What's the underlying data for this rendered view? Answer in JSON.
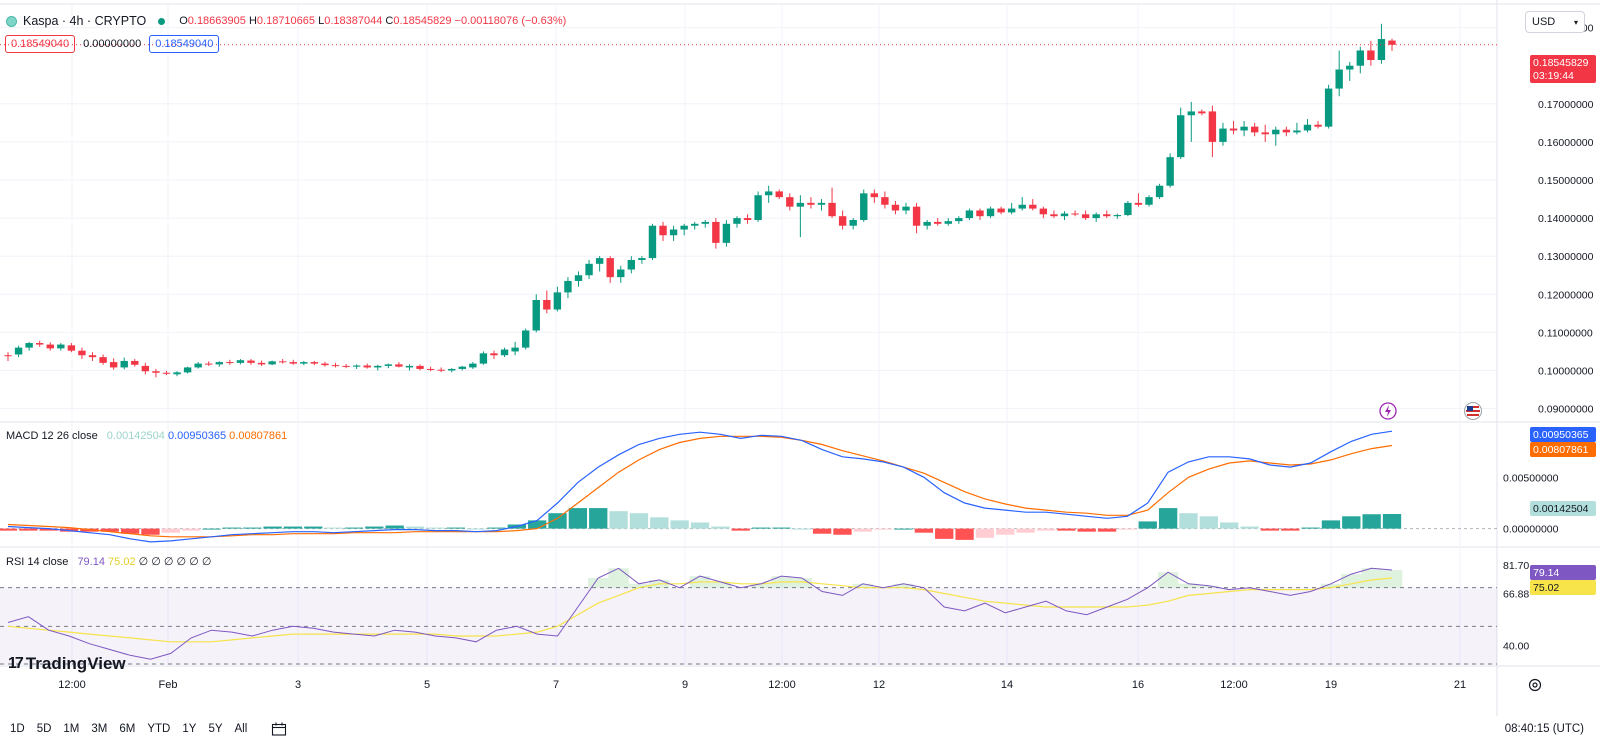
{
  "header": {
    "symbol": "Kaspa · 4h · CRYPTO",
    "open_label": "O",
    "open": "0.18663905",
    "high_label": "H",
    "high": "0.18710665",
    "low_label": "L",
    "low": "0.18387044",
    "close_label": "C",
    "close": "0.18545829",
    "change": "−0.00118076 (−0.63%)"
  },
  "price_boxes": {
    "bid": "0.18549040",
    "spread": "0.00000000",
    "ask": "0.18549040"
  },
  "currency": {
    "label": "USD"
  },
  "price_axis": {
    "ticks": [
      "0.19000000",
      "0.17000000",
      "0.16000000",
      "0.15000000",
      "0.14000000",
      "0.13000000",
      "0.12000000",
      "0.11000000",
      "0.10000000",
      "0.09000000"
    ],
    "current_price": "0.18545829",
    "countdown": "03:19:44"
  },
  "macd": {
    "label": "MACD 12 26 close",
    "histogram_value": "0.00142504",
    "macd_value": "0.00950365",
    "signal_value": "0.00807861",
    "axis_ticks": [
      "0.00500000",
      "0.00000000"
    ]
  },
  "rsi": {
    "label": "RSI 14 close",
    "value": "79.14",
    "ma_value": "75.02",
    "extra": "∅ ∅ ∅ ∅ ∅ ∅",
    "axis_ticks": [
      "81.70",
      "66.88",
      "40.00"
    ]
  },
  "time_axis": [
    "12:00",
    "Feb",
    "3",
    "5",
    "7",
    "9",
    "12:00",
    "12",
    "14",
    "16",
    "12:00",
    "19",
    "21"
  ],
  "timeframes": [
    "1D",
    "5D",
    "1M",
    "3M",
    "6M",
    "YTD",
    "1Y",
    "5Y",
    "All"
  ],
  "clock": "08:40:15 (UTC)",
  "branding": "TradingView",
  "colors": {
    "up": "#089981",
    "down": "#f23645",
    "macd": "#2962ff",
    "signal": "#ff6d00",
    "rsi": "#7e57c2",
    "rsi_ma": "#f7e34a"
  },
  "chart_data": {
    "type": "candlestick",
    "interval": "4h",
    "y_range": [
      0.087,
      0.192
    ],
    "candles": [
      {
        "o": 0.104,
        "h": 0.1048,
        "l": 0.1025,
        "c": 0.1038
      },
      {
        "o": 0.1042,
        "h": 0.1065,
        "l": 0.1035,
        "c": 0.106
      },
      {
        "o": 0.106,
        "h": 0.1075,
        "l": 0.1052,
        "c": 0.1072
      },
      {
        "o": 0.1072,
        "h": 0.1078,
        "l": 0.1062,
        "c": 0.1068
      },
      {
        "o": 0.1068,
        "h": 0.1074,
        "l": 0.1052,
        "c": 0.1058
      },
      {
        "o": 0.1058,
        "h": 0.1072,
        "l": 0.1052,
        "c": 0.1068
      },
      {
        "o": 0.1066,
        "h": 0.1072,
        "l": 0.1048,
        "c": 0.1052
      },
      {
        "o": 0.1052,
        "h": 0.106,
        "l": 0.103,
        "c": 0.104
      },
      {
        "o": 0.104,
        "h": 0.1048,
        "l": 0.1025,
        "c": 0.1035
      },
      {
        "o": 0.1035,
        "h": 0.1042,
        "l": 0.1015,
        "c": 0.102
      },
      {
        "o": 0.1022,
        "h": 0.1032,
        "l": 0.1002,
        "c": 0.1008
      },
      {
        "o": 0.1008,
        "h": 0.1034,
        "l": 0.1003,
        "c": 0.1025
      },
      {
        "o": 0.1025,
        "h": 0.103,
        "l": 0.101,
        "c": 0.1015
      },
      {
        "o": 0.1012,
        "h": 0.102,
        "l": 0.099,
        "c": 0.0998
      },
      {
        "o": 0.0998,
        "h": 0.1004,
        "l": 0.0982,
        "c": 0.0994
      },
      {
        "o": 0.0994,
        "h": 0.0999,
        "l": 0.0988,
        "c": 0.0992
      },
      {
        "o": 0.099,
        "h": 0.0998,
        "l": 0.0985,
        "c": 0.0995
      },
      {
        "o": 0.0995,
        "h": 0.101,
        "l": 0.0992,
        "c": 0.1008
      },
      {
        "o": 0.1008,
        "h": 0.1022,
        "l": 0.1005,
        "c": 0.1018
      },
      {
        "o": 0.1018,
        "h": 0.1024,
        "l": 0.1012,
        "c": 0.1016
      },
      {
        "o": 0.1016,
        "h": 0.1024,
        "l": 0.101,
        "c": 0.1022
      },
      {
        "o": 0.1022,
        "h": 0.1028,
        "l": 0.1015,
        "c": 0.102
      },
      {
        "o": 0.102,
        "h": 0.103,
        "l": 0.1016,
        "c": 0.1027
      },
      {
        "o": 0.1026,
        "h": 0.103,
        "l": 0.1015,
        "c": 0.102
      },
      {
        "o": 0.102,
        "h": 0.1026,
        "l": 0.1012,
        "c": 0.1016
      },
      {
        "o": 0.1016,
        "h": 0.1026,
        "l": 0.1014,
        "c": 0.1024
      },
      {
        "o": 0.1024,
        "h": 0.103,
        "l": 0.1018,
        "c": 0.1022
      },
      {
        "o": 0.1022,
        "h": 0.1028,
        "l": 0.1015,
        "c": 0.1018
      },
      {
        "o": 0.1018,
        "h": 0.1025,
        "l": 0.1014,
        "c": 0.1022
      },
      {
        "o": 0.1022,
        "h": 0.1025,
        "l": 0.1014,
        "c": 0.1018
      },
      {
        "o": 0.1018,
        "h": 0.1023,
        "l": 0.101,
        "c": 0.1014
      },
      {
        "o": 0.1014,
        "h": 0.102,
        "l": 0.1008,
        "c": 0.1012
      },
      {
        "o": 0.1012,
        "h": 0.1017,
        "l": 0.1006,
        "c": 0.101
      },
      {
        "o": 0.101,
        "h": 0.1016,
        "l": 0.1004,
        "c": 0.1013
      },
      {
        "o": 0.1013,
        "h": 0.1018,
        "l": 0.1005,
        "c": 0.1008
      },
      {
        "o": 0.1008,
        "h": 0.1015,
        "l": 0.1,
        "c": 0.1012
      },
      {
        "o": 0.1012,
        "h": 0.1018,
        "l": 0.1006,
        "c": 0.1016
      },
      {
        "o": 0.1016,
        "h": 0.1022,
        "l": 0.1008,
        "c": 0.101
      },
      {
        "o": 0.1008,
        "h": 0.1016,
        "l": 0.1,
        "c": 0.1012
      },
      {
        "o": 0.1012,
        "h": 0.1016,
        "l": 0.1,
        "c": 0.1004
      },
      {
        "o": 0.1004,
        "h": 0.101,
        "l": 0.0998,
        "c": 0.1002
      },
      {
        "o": 0.1002,
        "h": 0.1008,
        "l": 0.0996,
        "c": 0.1
      },
      {
        "o": 0.1,
        "h": 0.1006,
        "l": 0.0995,
        "c": 0.1004
      },
      {
        "o": 0.1004,
        "h": 0.1012,
        "l": 0.1,
        "c": 0.101
      },
      {
        "o": 0.1008,
        "h": 0.1022,
        "l": 0.1004,
        "c": 0.1018
      },
      {
        "o": 0.1018,
        "h": 0.105,
        "l": 0.1015,
        "c": 0.1045
      },
      {
        "o": 0.1045,
        "h": 0.1052,
        "l": 0.103,
        "c": 0.104
      },
      {
        "o": 0.104,
        "h": 0.106,
        "l": 0.1035,
        "c": 0.1055
      },
      {
        "o": 0.105,
        "h": 0.1075,
        "l": 0.104,
        "c": 0.106
      },
      {
        "o": 0.106,
        "h": 0.111,
        "l": 0.1055,
        "c": 0.1105
      },
      {
        "o": 0.1105,
        "h": 0.12,
        "l": 0.11,
        "c": 0.1185
      },
      {
        "o": 0.1185,
        "h": 0.121,
        "l": 0.115,
        "c": 0.116
      },
      {
        "o": 0.116,
        "h": 0.122,
        "l": 0.1155,
        "c": 0.1205
      },
      {
        "o": 0.1205,
        "h": 0.1245,
        "l": 0.119,
        "c": 0.1235
      },
      {
        "o": 0.1235,
        "h": 0.126,
        "l": 0.122,
        "c": 0.125
      },
      {
        "o": 0.125,
        "h": 0.129,
        "l": 0.124,
        "c": 0.128
      },
      {
        "o": 0.128,
        "h": 0.13,
        "l": 0.126,
        "c": 0.1295
      },
      {
        "o": 0.1295,
        "h": 0.13,
        "l": 0.123,
        "c": 0.1245
      },
      {
        "o": 0.1245,
        "h": 0.1275,
        "l": 0.123,
        "c": 0.1265
      },
      {
        "o": 0.1265,
        "h": 0.13,
        "l": 0.1255,
        "c": 0.129
      },
      {
        "o": 0.129,
        "h": 0.13,
        "l": 0.128,
        "c": 0.1295
      },
      {
        "o": 0.1295,
        "h": 0.1385,
        "l": 0.129,
        "c": 0.138
      },
      {
        "o": 0.138,
        "h": 0.139,
        "l": 0.134,
        "c": 0.1355
      },
      {
        "o": 0.1355,
        "h": 0.138,
        "l": 0.134,
        "c": 0.137
      },
      {
        "o": 0.137,
        "h": 0.1385,
        "l": 0.1355,
        "c": 0.138
      },
      {
        "o": 0.138,
        "h": 0.139,
        "l": 0.137,
        "c": 0.1385
      },
      {
        "o": 0.1385,
        "h": 0.1395,
        "l": 0.1375,
        "c": 0.139
      },
      {
        "o": 0.139,
        "h": 0.14,
        "l": 0.132,
        "c": 0.1335
      },
      {
        "o": 0.1335,
        "h": 0.1395,
        "l": 0.1325,
        "c": 0.1385
      },
      {
        "o": 0.1385,
        "h": 0.1405,
        "l": 0.1375,
        "c": 0.14
      },
      {
        "o": 0.14,
        "h": 0.141,
        "l": 0.1385,
        "c": 0.1395
      },
      {
        "o": 0.1395,
        "h": 0.147,
        "l": 0.139,
        "c": 0.146
      },
      {
        "o": 0.146,
        "h": 0.1485,
        "l": 0.144,
        "c": 0.147
      },
      {
        "o": 0.147,
        "h": 0.1475,
        "l": 0.145,
        "c": 0.1455
      },
      {
        "o": 0.1455,
        "h": 0.1465,
        "l": 0.142,
        "c": 0.143
      },
      {
        "o": 0.143,
        "h": 0.146,
        "l": 0.135,
        "c": 0.144
      },
      {
        "o": 0.144,
        "h": 0.1455,
        "l": 0.1425,
        "c": 0.1435
      },
      {
        "o": 0.1435,
        "h": 0.145,
        "l": 0.142,
        "c": 0.144
      },
      {
        "o": 0.144,
        "h": 0.148,
        "l": 0.14,
        "c": 0.1405
      },
      {
        "o": 0.1405,
        "h": 0.142,
        "l": 0.137,
        "c": 0.138
      },
      {
        "o": 0.138,
        "h": 0.14,
        "l": 0.137,
        "c": 0.1395
      },
      {
        "o": 0.1395,
        "h": 0.1475,
        "l": 0.139,
        "c": 0.1465
      },
      {
        "o": 0.1465,
        "h": 0.1475,
        "l": 0.144,
        "c": 0.1455
      },
      {
        "o": 0.1455,
        "h": 0.147,
        "l": 0.1425,
        "c": 0.1435
      },
      {
        "o": 0.1435,
        "h": 0.1445,
        "l": 0.141,
        "c": 0.142
      },
      {
        "o": 0.142,
        "h": 0.144,
        "l": 0.141,
        "c": 0.143
      },
      {
        "o": 0.143,
        "h": 0.144,
        "l": 0.136,
        "c": 0.138
      },
      {
        "o": 0.138,
        "h": 0.1395,
        "l": 0.137,
        "c": 0.139
      },
      {
        "o": 0.139,
        "h": 0.14,
        "l": 0.138,
        "c": 0.1385
      },
      {
        "o": 0.1385,
        "h": 0.14,
        "l": 0.138,
        "c": 0.1392
      },
      {
        "o": 0.1392,
        "h": 0.1405,
        "l": 0.1385,
        "c": 0.14
      },
      {
        "o": 0.14,
        "h": 0.1425,
        "l": 0.1395,
        "c": 0.142
      },
      {
        "o": 0.142,
        "h": 0.1425,
        "l": 0.1395,
        "c": 0.1405
      },
      {
        "o": 0.1405,
        "h": 0.143,
        "l": 0.14,
        "c": 0.1425
      },
      {
        "o": 0.1425,
        "h": 0.143,
        "l": 0.141,
        "c": 0.1415
      },
      {
        "o": 0.1415,
        "h": 0.144,
        "l": 0.141,
        "c": 0.1425
      },
      {
        "o": 0.1425,
        "h": 0.1455,
        "l": 0.142,
        "c": 0.1435
      },
      {
        "o": 0.1435,
        "h": 0.145,
        "l": 0.142,
        "c": 0.1425
      },
      {
        "o": 0.1425,
        "h": 0.143,
        "l": 0.14,
        "c": 0.141
      },
      {
        "o": 0.141,
        "h": 0.142,
        "l": 0.14,
        "c": 0.1405
      },
      {
        "o": 0.1405,
        "h": 0.1418,
        "l": 0.1395,
        "c": 0.1412
      },
      {
        "o": 0.1412,
        "h": 0.142,
        "l": 0.1405,
        "c": 0.141
      },
      {
        "o": 0.141,
        "h": 0.142,
        "l": 0.1395,
        "c": 0.14
      },
      {
        "o": 0.14,
        "h": 0.1415,
        "l": 0.139,
        "c": 0.141
      },
      {
        "o": 0.141,
        "h": 0.142,
        "l": 0.14,
        "c": 0.1405
      },
      {
        "o": 0.1405,
        "h": 0.1412,
        "l": 0.1398,
        "c": 0.1408
      },
      {
        "o": 0.1408,
        "h": 0.1445,
        "l": 0.1405,
        "c": 0.144
      },
      {
        "o": 0.144,
        "h": 0.1465,
        "l": 0.143,
        "c": 0.1435
      },
      {
        "o": 0.1435,
        "h": 0.146,
        "l": 0.143,
        "c": 0.1455
      },
      {
        "o": 0.1455,
        "h": 0.149,
        "l": 0.145,
        "c": 0.1485
      },
      {
        "o": 0.1485,
        "h": 0.157,
        "l": 0.148,
        "c": 0.156
      },
      {
        "o": 0.156,
        "h": 0.169,
        "l": 0.1555,
        "c": 0.167
      },
      {
        "o": 0.167,
        "h": 0.1705,
        "l": 0.16,
        "c": 0.168
      },
      {
        "o": 0.168,
        "h": 0.1685,
        "l": 0.167,
        "c": 0.1675
      },
      {
        "o": 0.168,
        "h": 0.1695,
        "l": 0.156,
        "c": 0.16
      },
      {
        "o": 0.16,
        "h": 0.165,
        "l": 0.159,
        "c": 0.1635
      },
      {
        "o": 0.1635,
        "h": 0.1655,
        "l": 0.162,
        "c": 0.163
      },
      {
        "o": 0.163,
        "h": 0.1655,
        "l": 0.1615,
        "c": 0.164
      },
      {
        "o": 0.164,
        "h": 0.165,
        "l": 0.1615,
        "c": 0.1625
      },
      {
        "o": 0.1625,
        "h": 0.1645,
        "l": 0.16,
        "c": 0.162
      },
      {
        "o": 0.162,
        "h": 0.164,
        "l": 0.159,
        "c": 0.1632
      },
      {
        "o": 0.1632,
        "h": 0.164,
        "l": 0.1615,
        "c": 0.1625
      },
      {
        "o": 0.1625,
        "h": 0.165,
        "l": 0.162,
        "c": 0.163
      },
      {
        "o": 0.163,
        "h": 0.166,
        "l": 0.1625,
        "c": 0.1645
      },
      {
        "o": 0.1645,
        "h": 0.1655,
        "l": 0.1635,
        "c": 0.164
      },
      {
        "o": 0.164,
        "h": 0.175,
        "l": 0.1635,
        "c": 0.174
      },
      {
        "o": 0.174,
        "h": 0.184,
        "l": 0.172,
        "c": 0.179
      },
      {
        "o": 0.179,
        "h": 0.181,
        "l": 0.176,
        "c": 0.18
      },
      {
        "o": 0.18,
        "h": 0.185,
        "l": 0.178,
        "c": 0.184
      },
      {
        "o": 0.184,
        "h": 0.1865,
        "l": 0.18,
        "c": 0.1815
      },
      {
        "o": 0.1815,
        "h": 0.191,
        "l": 0.1805,
        "c": 0.187
      },
      {
        "o": 0.1866,
        "h": 0.1871,
        "l": 0.1839,
        "c": 0.1855
      }
    ],
    "macd_line": [
      0.0002,
      0.0001,
      0.0,
      -0.0002,
      -0.0004,
      -0.0006,
      -0.001,
      -0.0013,
      -0.0012,
      -0.001,
      -0.0008,
      -0.0006,
      -0.0005,
      -0.0004,
      -0.0003,
      -0.0003,
      -0.0004,
      -0.0003,
      -0.0002,
      -0.0001,
      -0.0001,
      -0.0002,
      -0.0002,
      -0.0003,
      -0.0002,
      0.0002,
      0.0008,
      0.0025,
      0.0045,
      0.006,
      0.0072,
      0.0082,
      0.0088,
      0.0092,
      0.0094,
      0.0092,
      0.0088,
      0.0091,
      0.009,
      0.0086,
      0.0077,
      0.007,
      0.0068,
      0.0065,
      0.006,
      0.005,
      0.0035,
      0.0025,
      0.002,
      0.0018,
      0.0016,
      0.0016,
      0.0014,
      0.0012,
      0.001,
      0.0012,
      0.0025,
      0.0055,
      0.0065,
      0.007,
      0.007,
      0.0068,
      0.0062,
      0.006,
      0.0064,
      0.0075,
      0.0085,
      0.0092,
      0.0095
    ],
    "signal_line": [
      0.0004,
      0.0003,
      0.0002,
      0.0001,
      -0.0001,
      -0.0003,
      -0.0005,
      -0.0007,
      -0.0008,
      -0.0008,
      -0.0008,
      -0.0007,
      -0.0006,
      -0.0006,
      -0.0005,
      -0.0005,
      -0.0005,
      -0.0004,
      -0.0004,
      -0.0004,
      -0.0003,
      -0.0003,
      -0.0003,
      -0.0003,
      -0.0003,
      -0.0002,
      0.0,
      0.001,
      0.0025,
      0.004,
      0.0055,
      0.0067,
      0.0077,
      0.0084,
      0.0088,
      0.009,
      0.009,
      0.009,
      0.0089,
      0.0086,
      0.0082,
      0.0076,
      0.0071,
      0.0066,
      0.006,
      0.0054,
      0.0045,
      0.0036,
      0.0029,
      0.0024,
      0.002,
      0.0018,
      0.0016,
      0.0015,
      0.0013,
      0.0013,
      0.0018,
      0.0035,
      0.005,
      0.0058,
      0.0064,
      0.0066,
      0.0064,
      0.0062,
      0.0063,
      0.0067,
      0.0073,
      0.0078,
      0.0081
    ],
    "histogram": [
      -0.0002,
      -0.0002,
      -0.0002,
      -0.0003,
      -0.0003,
      -0.0003,
      -0.0005,
      -0.0006,
      -0.0004,
      -0.0002,
      0.0,
      0.0001,
      0.0001,
      0.0002,
      0.0002,
      0.0002,
      0.0001,
      0.0001,
      0.0002,
      0.0003,
      0.0002,
      0.0001,
      0.0001,
      0.0,
      0.0001,
      0.0004,
      0.0008,
      0.0015,
      0.002,
      0.002,
      0.0017,
      0.0015,
      0.0011,
      0.0008,
      0.0006,
      0.0002,
      -0.0002,
      0.0001,
      0.0001,
      0.0,
      -0.0005,
      -0.0006,
      -0.0003,
      -0.0001,
      0.0,
      -0.0004,
      -0.001,
      -0.0011,
      -0.0009,
      -0.0006,
      -0.0004,
      -0.0002,
      -0.0002,
      -0.0003,
      -0.0003,
      -0.0001,
      0.0007,
      0.002,
      0.0015,
      0.0012,
      0.0006,
      0.0002,
      -0.0002,
      -0.0002,
      0.0001,
      0.0008,
      0.0012,
      0.0014,
      0.00142504
    ],
    "rsi_line": [
      52,
      55,
      48,
      45,
      41,
      38,
      35,
      33,
      36,
      44,
      48,
      47,
      45,
      48,
      50,
      49,
      47,
      46,
      45,
      48,
      47,
      45,
      44,
      42,
      48,
      50,
      46,
      45,
      60,
      75,
      80,
      72,
      74,
      70,
      76,
      73,
      70,
      72,
      76,
      75,
      68,
      66,
      72,
      70,
      72,
      70,
      60,
      58,
      62,
      57,
      60,
      63,
      58,
      56,
      60,
      64,
      70,
      78,
      72,
      71,
      69,
      70,
      68,
      66,
      68,
      72,
      77,
      80,
      79.14
    ],
    "rsi_ma": [
      50,
      49,
      48,
      47,
      46,
      45,
      44,
      43,
      42,
      42,
      42,
      43,
      44,
      45,
      46,
      46,
      46,
      46,
      46,
      46,
      46,
      46,
      45,
      45,
      45,
      46,
      47,
      50,
      56,
      62,
      66,
      70,
      72,
      72,
      73,
      73,
      72,
      72,
      73,
      73,
      72,
      71,
      70,
      70,
      70,
      69,
      67,
      65,
      63,
      62,
      61,
      60,
      60,
      60,
      60,
      60,
      61,
      63,
      66,
      67,
      68,
      69,
      69,
      69,
      69,
      70,
      72,
      74,
      75.02
    ]
  }
}
